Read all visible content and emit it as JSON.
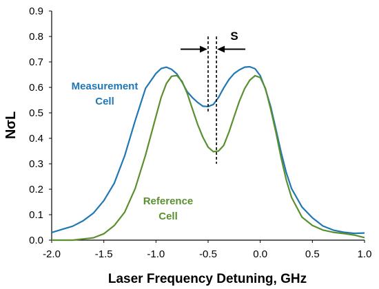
{
  "chart_data": {
    "type": "line",
    "title": "",
    "xlabel": "Laser Frequency Detuning, GHz",
    "ylabel": "NσL",
    "xlim": [
      -2.0,
      1.0
    ],
    "ylim": [
      0.0,
      0.9
    ],
    "xticks": [
      "-2.0",
      "-1.5",
      "-1.0",
      "-0.5",
      "0.0",
      "0.5",
      "1.0"
    ],
    "yticks": [
      "0.0",
      "0.1",
      "0.2",
      "0.3",
      "0.4",
      "0.5",
      "0.6",
      "0.7",
      "0.8",
      "0.9"
    ],
    "grid": false,
    "series": [
      {
        "name": "Measurement Cell",
        "color": "#1f77b4",
        "x": [
          -2.0,
          -1.9,
          -1.8,
          -1.7,
          -1.6,
          -1.5,
          -1.4,
          -1.3,
          -1.2,
          -1.1,
          -1.0,
          -0.95,
          -0.9,
          -0.85,
          -0.8,
          -0.75,
          -0.7,
          -0.65,
          -0.6,
          -0.55,
          -0.5,
          -0.45,
          -0.4,
          -0.35,
          -0.3,
          -0.25,
          -0.2,
          -0.15,
          -0.1,
          -0.05,
          0.0,
          0.05,
          0.1,
          0.15,
          0.2,
          0.25,
          0.3,
          0.4,
          0.5,
          0.6,
          0.7,
          0.8,
          0.9,
          1.0
        ],
        "y": [
          0.03,
          0.04,
          0.05,
          0.07,
          0.1,
          0.15,
          0.22,
          0.33,
          0.47,
          0.6,
          0.66,
          0.68,
          0.685,
          0.675,
          0.655,
          0.62,
          0.58,
          0.555,
          0.535,
          0.52,
          0.52,
          0.53,
          0.56,
          0.6,
          0.635,
          0.66,
          0.675,
          0.685,
          0.685,
          0.675,
          0.645,
          0.59,
          0.52,
          0.43,
          0.34,
          0.26,
          0.2,
          0.13,
          0.09,
          0.06,
          0.045,
          0.037,
          0.032,
          0.028
        ]
      },
      {
        "name": "Reference Cell",
        "color": "#5a8f2e",
        "x": [
          -2.0,
          -1.8,
          -1.6,
          -1.5,
          -1.4,
          -1.3,
          -1.2,
          -1.1,
          -1.0,
          -0.95,
          -0.9,
          -0.85,
          -0.8,
          -0.75,
          -0.7,
          -0.65,
          -0.6,
          -0.55,
          -0.5,
          -0.45,
          -0.4,
          -0.35,
          -0.3,
          -0.25,
          -0.2,
          -0.15,
          -0.1,
          -0.05,
          0.0,
          0.05,
          0.1,
          0.15,
          0.2,
          0.25,
          0.3,
          0.4,
          0.5,
          0.6,
          0.7,
          0.8,
          0.9,
          1.0
        ],
        "y": [
          0.0,
          0.005,
          0.015,
          0.03,
          0.06,
          0.11,
          0.2,
          0.33,
          0.48,
          0.555,
          0.61,
          0.64,
          0.645,
          0.625,
          0.58,
          0.52,
          0.46,
          0.41,
          0.37,
          0.35,
          0.35,
          0.37,
          0.42,
          0.48,
          0.54,
          0.59,
          0.625,
          0.645,
          0.64,
          0.6,
          0.52,
          0.43,
          0.33,
          0.24,
          0.17,
          0.09,
          0.055,
          0.035,
          0.025,
          0.02,
          0.015,
          0.01
        ]
      }
    ],
    "annotations": {
      "measurement_label_line1": "Measurement",
      "measurement_label_line2": "Cell",
      "reference_label_line1": "Reference",
      "reference_label_line2": "Cell",
      "separation_label": "S",
      "measurement_dip_x": -0.5,
      "reference_dip_x": -0.42
    }
  }
}
